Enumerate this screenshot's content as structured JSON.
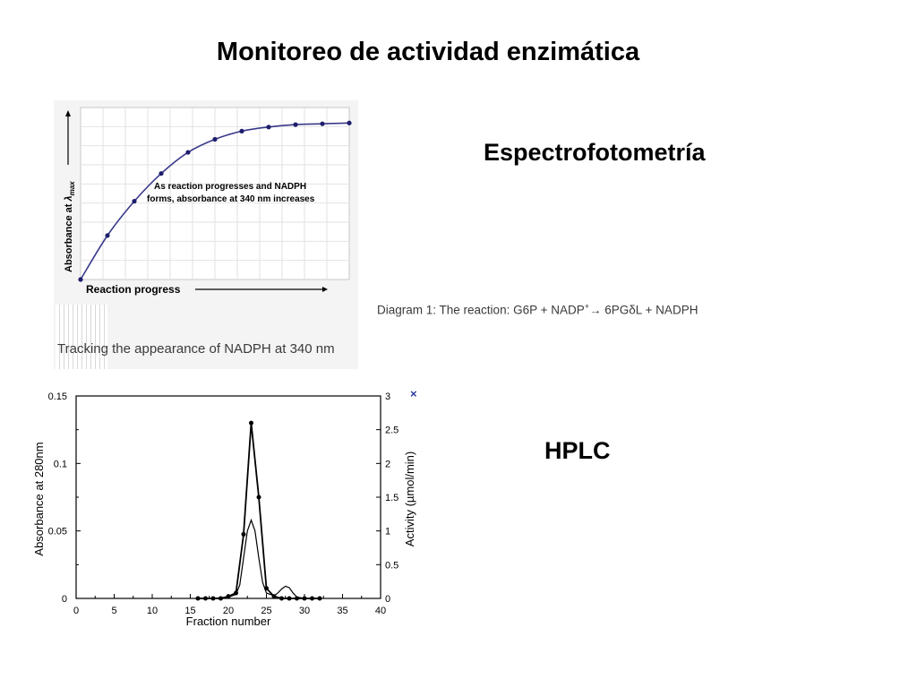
{
  "slide": {
    "title": "Monitoreo de actividad enzimática",
    "subtitle_spectro": "Espectrofotometría",
    "subtitle_hplc": "HPLC"
  },
  "spectro": {
    "caption": "Tracking the appearance of NADPH at 340 nm",
    "diagram_caption": {
      "prefix": "Diagram 1: The reaction: G6P + NADP",
      "sup": "+",
      "suffix": "→ 6PGδL + NADPH"
    }
  },
  "colors": {
    "curve": "#3a3a8c",
    "points": "#1e1e6e",
    "axis": "#000000",
    "hplc_x_marker": "#2a3a9a"
  },
  "chart_data": [
    {
      "type": "line",
      "title": "",
      "xlabel": "Reaction progress",
      "ylabel_prefix": "Absorbance at ",
      "ylabel_symbol": "λ",
      "ylabel_sub": "max",
      "annotation": [
        "As reaction progresses and NADPH",
        "forms, absorbance at 340 nm increases"
      ],
      "grid": true,
      "xlim": [
        0,
        10
      ],
      "ylim": [
        0,
        1
      ],
      "series": [
        {
          "x": [
            0,
            1,
            2,
            3,
            4,
            5,
            6,
            7,
            8,
            9,
            10
          ],
          "y": [
            0.0,
            0.27,
            0.48,
            0.65,
            0.78,
            0.86,
            0.91,
            0.935,
            0.95,
            0.955,
            0.96
          ]
        }
      ]
    },
    {
      "type": "line",
      "title": "",
      "xlabel": "Fraction number",
      "ylabel_left": "Absorbance at 280nm",
      "ylabel_right": "Activity (µmol/min)",
      "legend_marker": "×",
      "xlim": [
        0,
        40
      ],
      "ylim_left": [
        0,
        0.15
      ],
      "ylim_right": [
        0,
        3
      ],
      "x_ticks": [
        "0",
        "5",
        "10",
        "15",
        "20",
        "25",
        "30",
        "35",
        "40"
      ],
      "y_ticks_left": [
        "0",
        "0.05",
        "0.1",
        "0.15"
      ],
      "y_ticks_right": [
        "0",
        "0.5",
        "1",
        "1.5",
        "2",
        "2.5",
        "3"
      ],
      "series": [
        {
          "axis": "right",
          "marker": "circle",
          "x": [
            16,
            17,
            18,
            19,
            20,
            21,
            22,
            23,
            24,
            25,
            26,
            27,
            28,
            29,
            30,
            31,
            32
          ],
          "y": [
            0,
            0,
            0,
            0,
            0.03,
            0.08,
            0.95,
            2.6,
            1.5,
            0.15,
            0.03,
            0,
            0,
            0,
            0,
            0,
            0
          ]
        },
        {
          "axis": "left",
          "marker": "none",
          "x": [
            16,
            18,
            20,
            21,
            21.5,
            22,
            22.5,
            23,
            23.5,
            24,
            24.5,
            25,
            26,
            26.5,
            27,
            27.5,
            28,
            28.5,
            29,
            30,
            32
          ],
          "y": [
            0,
            0,
            0.001,
            0.003,
            0.01,
            0.03,
            0.05,
            0.058,
            0.05,
            0.03,
            0.012,
            0.004,
            0.002,
            0.004,
            0.007,
            0.009,
            0.008,
            0.004,
            0.001,
            0,
            0
          ]
        }
      ]
    }
  ]
}
